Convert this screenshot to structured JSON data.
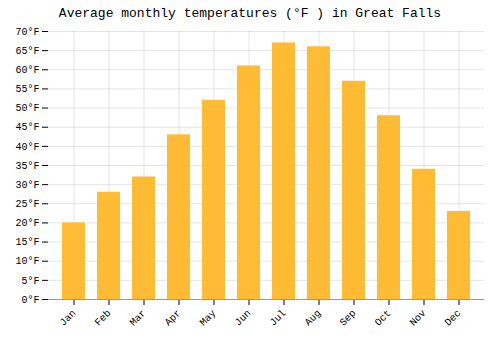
{
  "chart_data": {
    "type": "bar",
    "title": "Average monthly temperatures (°F ) in Great Falls",
    "categories": [
      "Jan",
      "Feb",
      "Mar",
      "Apr",
      "May",
      "Jun",
      "Jul",
      "Aug",
      "Sep",
      "Oct",
      "Nov",
      "Dec"
    ],
    "values": [
      20,
      28,
      32,
      43,
      52,
      61,
      67,
      66,
      57,
      48,
      34,
      23
    ],
    "color": "#FFBB33",
    "ylim": [
      0,
      70
    ],
    "yticks": [
      {
        "value": 0,
        "label": "0°F"
      },
      {
        "value": 5,
        "label": "5°F"
      },
      {
        "value": 10,
        "label": "10°F"
      },
      {
        "value": 15,
        "label": "15°F"
      },
      {
        "value": 20,
        "label": "20°F"
      },
      {
        "value": 25,
        "label": "25°F"
      },
      {
        "value": 30,
        "label": "30°F"
      },
      {
        "value": 35,
        "label": "35°F"
      },
      {
        "value": 40,
        "label": "40°F"
      },
      {
        "value": 45,
        "label": "45°F"
      },
      {
        "value": 50,
        "label": "50°F"
      },
      {
        "value": 55,
        "label": "55°F"
      },
      {
        "value": 60,
        "label": "60°F"
      },
      {
        "value": 65,
        "label": "65°F"
      },
      {
        "value": 70,
        "label": "70°F"
      }
    ],
    "grid": true
  }
}
